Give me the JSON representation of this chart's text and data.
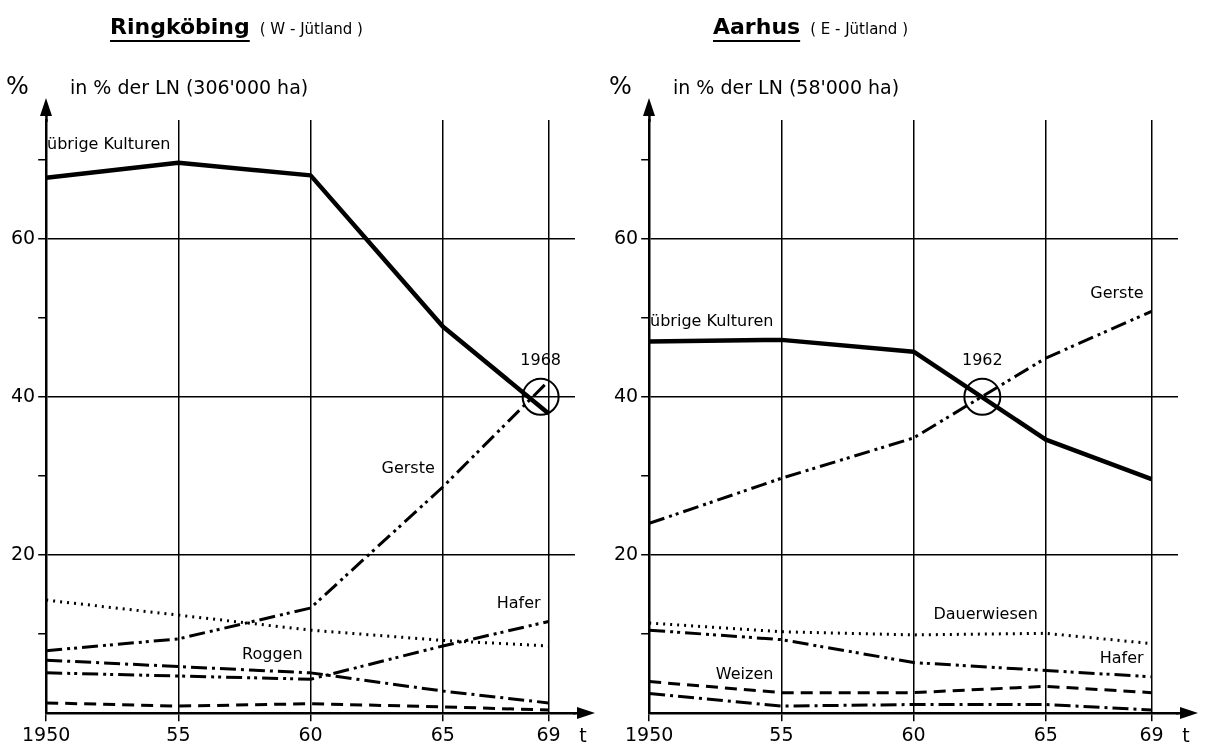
{
  "chart_data": [
    {
      "type": "line",
      "title": "Ringköbing",
      "subtitle": "( W - Jütland )",
      "ylabel": "%",
      "xlabel": "t",
      "grid": true,
      "legend": false,
      "marker": "none",
      "x": [
        1950,
        1955,
        1960,
        1965,
        1969
      ],
      "xlim": [
        1950,
        1970
      ],
      "xticks": [
        1950,
        {
          "value": 1955,
          "label": "55"
        },
        {
          "value": 1960,
          "label": "60"
        },
        {
          "value": 1965,
          "label": "65"
        },
        {
          "value": 1969,
          "label": "69"
        }
      ],
      "ylim": [
        0,
        75
      ],
      "yticks": [
        {
          "value": 10,
          "label": null
        },
        20,
        {
          "value": 30,
          "label": null
        },
        40,
        {
          "value": 50,
          "label": null
        },
        60,
        {
          "value": 70,
          "label": null
        }
      ],
      "series": [
        {
          "color": "#000000",
          "line_style": "solid",
          "values": [
            67.7,
            69.6,
            68.0,
            48.9,
            37.9
          ]
        },
        {
          "color": "#000000",
          "line_style": "dashdotdot",
          "values": [
            7.9,
            9.4,
            13.3,
            28.6,
            42.0
          ]
        },
        {
          "color": "#000000",
          "line_style": "dotted",
          "values": [
            14.3,
            12.4,
            10.5,
            9.2,
            8.5
          ]
        },
        {
          "color": "#000000",
          "line_style": "dashdotdot",
          "values": [
            5.1,
            4.7,
            4.3,
            8.5,
            11.6
          ]
        },
        {
          "color": "#000000",
          "line_style": "dashdot",
          "values": [
            6.7,
            5.9,
            5.1,
            2.8,
            1.3
          ]
        },
        {
          "color": "#000000",
          "line_style": "dashed",
          "values": [
            1.3,
            0.9,
            1.2,
            0.8,
            0.4
          ]
        },
        {
          "type": "scatter",
          "name": "1968",
          "marker": "circle",
          "color": "#000000",
          "x": [
            1968.7
          ],
          "values": [
            40
          ]
        }
      ],
      "annotations": [
        "in % der LN (306'000 ha)",
        {
          "text": "übrige Kulturen",
          "x": 1955,
          "y": 69.6
        },
        {
          "text": "Gerste",
          "x": 1965,
          "y": 28.6
        },
        {
          "text": "Hafer",
          "x": 1969,
          "y": 11.6
        },
        {
          "text": "Roggen",
          "x": 1960,
          "y": 5.1
        }
      ]
    },
    {
      "type": "line",
      "title": "Aarhus",
      "subtitle": "( E - Jütland )",
      "ylabel": "%",
      "xlabel": "t",
      "grid": true,
      "legend": false,
      "marker": "none",
      "x": [
        1950,
        1955,
        1960,
        1965,
        1969
      ],
      "xlim": [
        1950,
        1970
      ],
      "xticks": [
        1950,
        {
          "value": 1955,
          "label": "55"
        },
        {
          "value": 1960,
          "label": "60"
        },
        {
          "value": 1965,
          "label": "65"
        },
        {
          "value": 1969,
          "label": "69"
        }
      ],
      "ylim": [
        0,
        75
      ],
      "yticks": [
        {
          "value": 10,
          "label": null
        },
        20,
        {
          "value": 30,
          "label": null
        },
        40,
        {
          "value": 50,
          "label": null
        },
        60,
        {
          "value": 70,
          "label": null
        }
      ],
      "series": [
        {
          "color": "#000000",
          "line_style": "solid",
          "values": [
            47.0,
            47.2,
            45.7,
            34.6,
            29.6
          ]
        },
        {
          "color": "#000000",
          "line_style": "dashdotdot",
          "values": [
            24.0,
            29.7,
            34.8,
            44.9,
            50.8
          ]
        },
        {
          "color": "#000000",
          "line_style": "dotted",
          "values": [
            11.4,
            10.3,
            9.9,
            10.1,
            8.8
          ]
        },
        {
          "color": "#000000",
          "line_style": "dashdotdot",
          "values": [
            10.5,
            9.3,
            6.4,
            5.4,
            4.6
          ]
        },
        {
          "color": "#000000",
          "line_style": "dashed",
          "values": [
            4.0,
            2.6,
            2.6,
            3.4,
            2.6
          ]
        },
        {
          "color": "#000000",
          "line_style": "dashdot",
          "values": [
            2.5,
            0.9,
            1.1,
            1.1,
            0.4
          ]
        },
        {
          "type": "scatter",
          "name": "1962",
          "marker": "circle",
          "color": "#000000",
          "x": [
            1962.6
          ],
          "values": [
            40
          ]
        }
      ],
      "annotations": [
        "in % der LN (58'000 ha)",
        {
          "text": "übrige Kulturen",
          "x": 1955,
          "y": 47.2
        },
        {
          "text": "Gerste",
          "x": 1969,
          "y": 50.8
        },
        {
          "text": "Dauerwiesen",
          "x": 1965,
          "y": 10.1
        },
        {
          "text": "Hafer",
          "x": 1969,
          "y": 4.6
        },
        {
          "text": "Weizen",
          "x": 1955,
          "y": 2.6
        }
      ]
    }
  ]
}
